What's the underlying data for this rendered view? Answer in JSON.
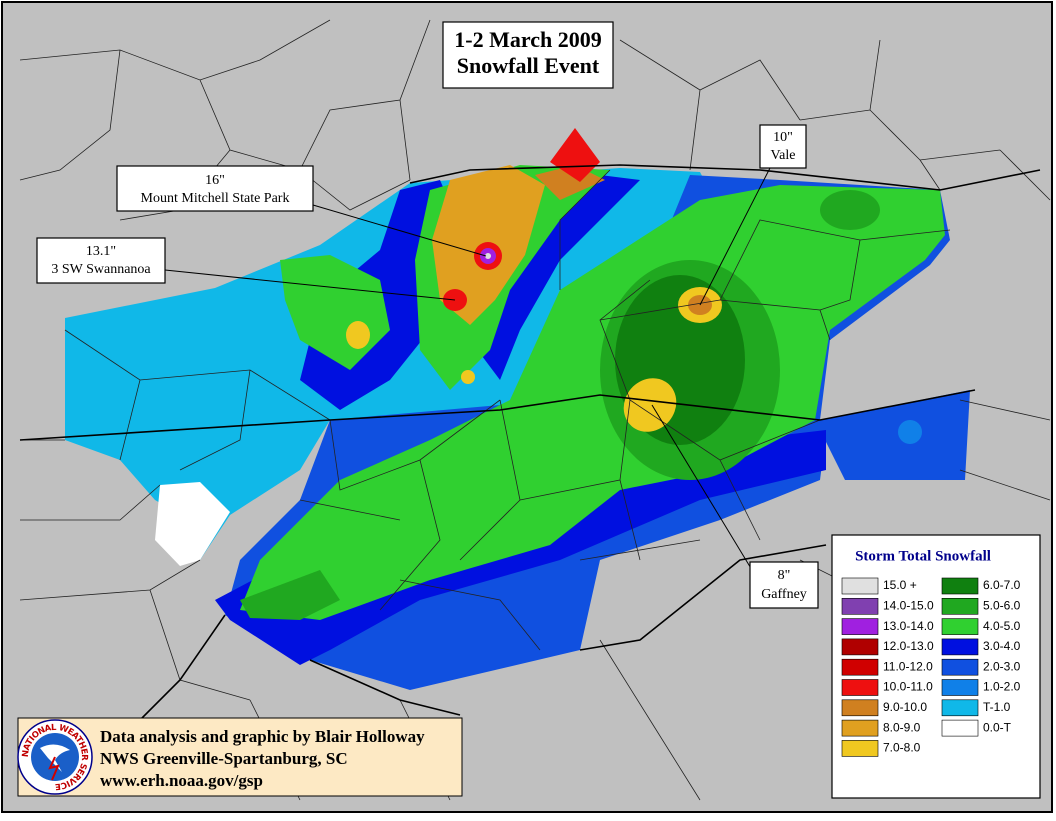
{
  "title": [
    "1-2 March 2009",
    "Snowfall Event"
  ],
  "callouts": [
    {
      "amount": "16\"",
      "place": "Mount Mitchell State Park"
    },
    {
      "amount": "13.1\"",
      "place": "3 SW Swannanoa"
    },
    {
      "amount": "10\"",
      "place": "Vale"
    },
    {
      "amount": "8\"",
      "place": "Gaffney"
    }
  ],
  "legend": {
    "title": "Storm Total Snowfall",
    "entries": [
      {
        "label": "15.0 +",
        "color": "#e0e0e0"
      },
      {
        "label": "14.0-15.0",
        "color": "#8040b0"
      },
      {
        "label": "13.0-14.0",
        "color": "#a020e0"
      },
      {
        "label": "12.0-13.0",
        "color": "#b00000"
      },
      {
        "label": "11.0-12.0",
        "color": "#d00000"
      },
      {
        "label": "10.0-11.0",
        "color": "#ee1010"
      },
      {
        "label": "9.0-10.0",
        "color": "#d08020"
      },
      {
        "label": "8.0-9.0",
        "color": "#e0a020"
      },
      {
        "label": "7.0-8.0",
        "color": "#f0c820"
      },
      {
        "label": "6.0-7.0",
        "color": "#108010"
      },
      {
        "label": "5.0-6.0",
        "color": "#20a820"
      },
      {
        "label": "4.0-5.0",
        "color": "#30d030"
      },
      {
        "label": "3.0-4.0",
        "color": "#0010e0"
      },
      {
        "label": "2.0-3.0",
        "color": "#1050e0"
      },
      {
        "label": "1.0-2.0",
        "color": "#1080e8"
      },
      {
        "label": "T-1.0",
        "color": "#10b8e8"
      },
      {
        "label": "0.0-T",
        "color": "#ffffff"
      }
    ]
  },
  "credits": [
    "Data analysis and graphic by Blair Holloway",
    "NWS Greenville-Spartanburg, SC",
    "www.erh.noaa.gov/gsp"
  ],
  "logo": "NATIONAL WEATHER SERVICE"
}
